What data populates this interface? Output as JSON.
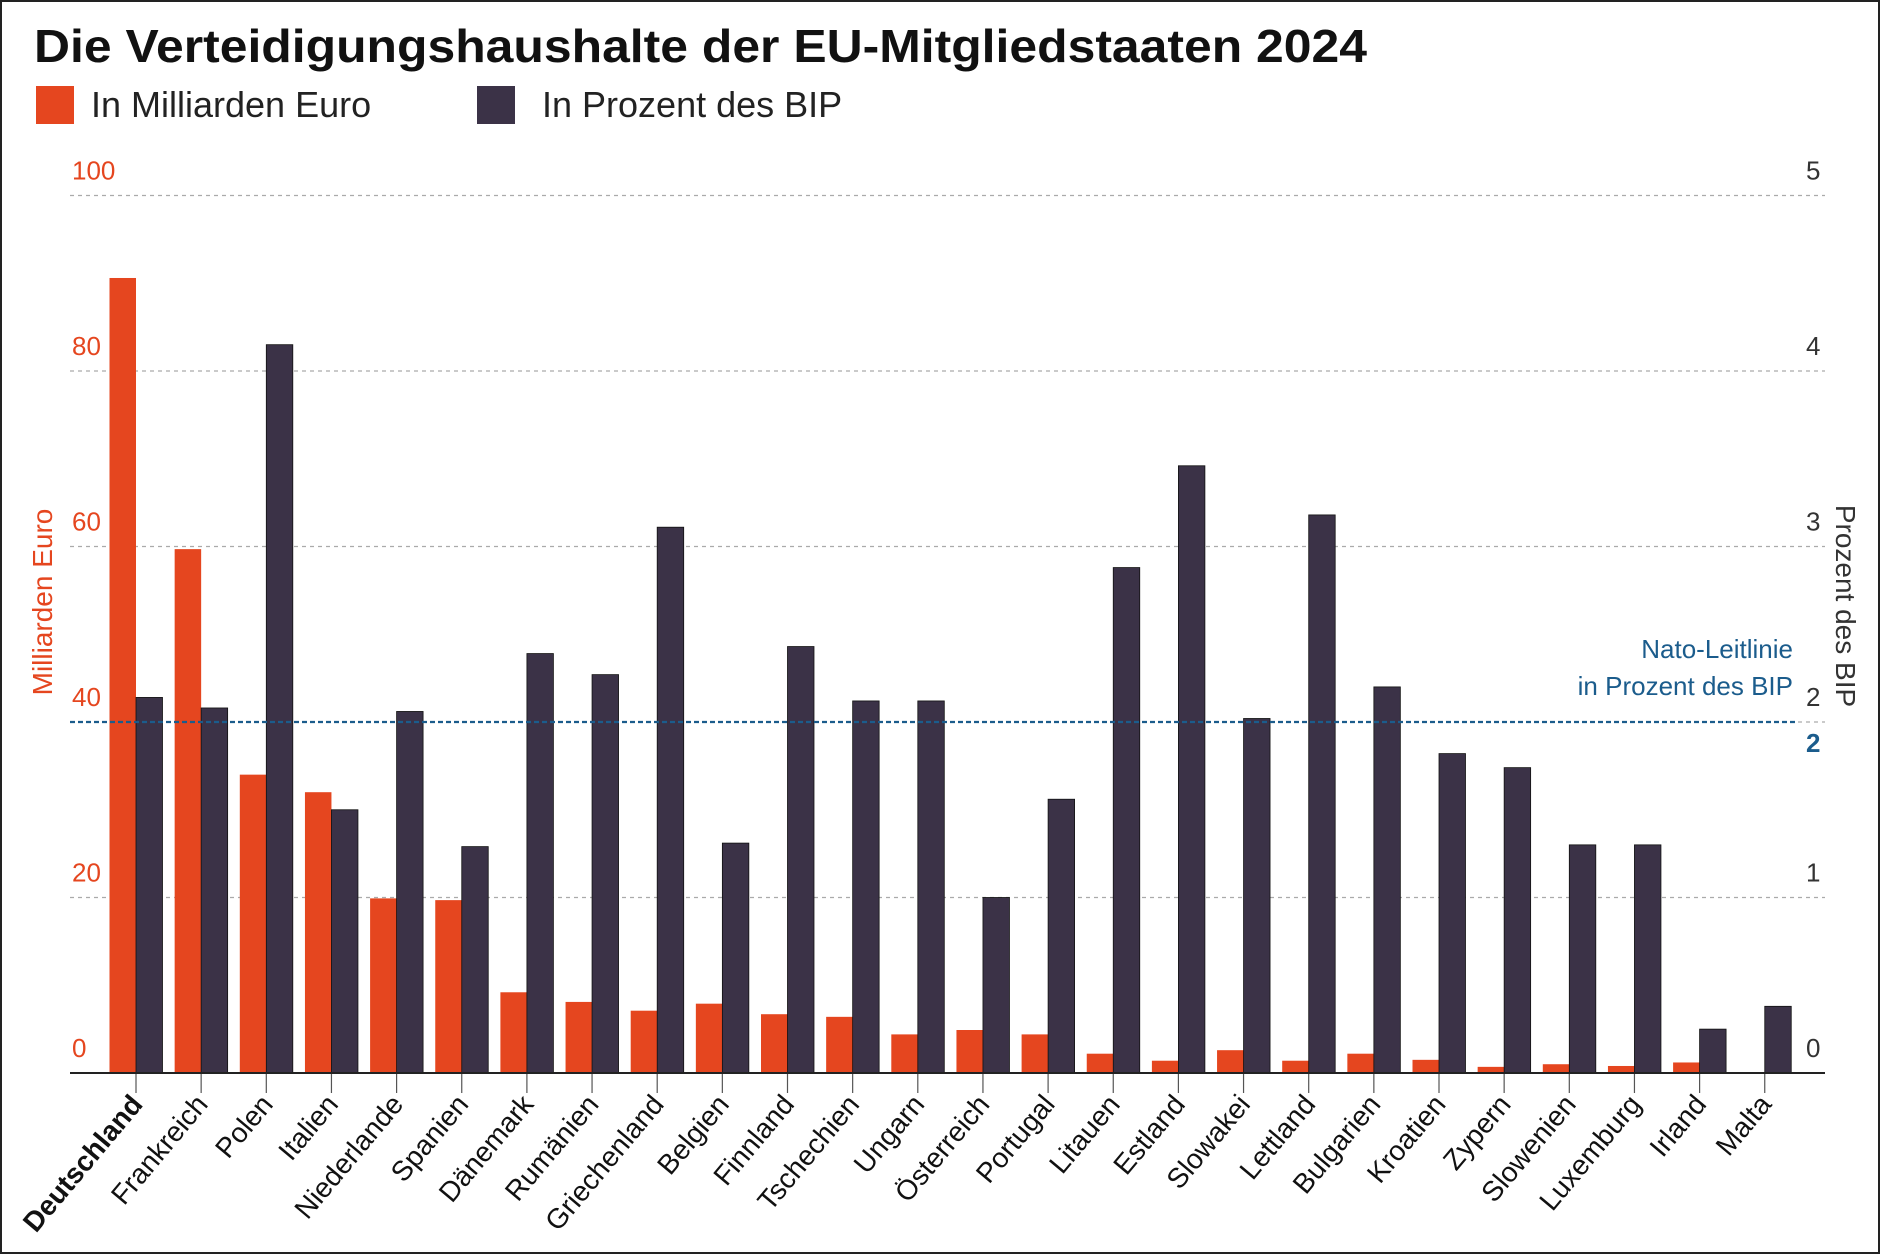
{
  "chart_data": {
    "type": "bar",
    "title": "Die Verteidigungshaushalte der EU-Mitgliedstaaten 2024",
    "legend": [
      {
        "name": "In Milliarden Euro",
        "color": "#e5461f"
      },
      {
        "name": "In Prozent des BIP",
        "color": "#3b3247"
      }
    ],
    "legend_placement": "top-left",
    "ylabel_left": "Milliarden Euro",
    "ylabel_right": "Prozent des BIP",
    "ylim_left": [
      0,
      100
    ],
    "ylim_right": [
      0,
      5
    ],
    "yticks_left": [
      "0",
      "20",
      "40",
      "60",
      "80",
      "100"
    ],
    "yticks_right": [
      "0",
      "1",
      "2",
      "3",
      "4",
      "5"
    ],
    "grid": true,
    "categories": [
      "Deutschland",
      "Frankreich",
      "Polen",
      "Italien",
      "Niederlande",
      "Spanien",
      "Dänemark",
      "Rumänien",
      "Griechenland",
      "Belgien",
      "Finnland",
      "Tschechien",
      "Ungarn",
      "Österreich",
      "Portugal",
      "Litauen",
      "Estland",
      "Slowakei",
      "Lettland",
      "Bulgarien",
      "Kroatien",
      "Zypern",
      "Slowenien",
      "Luxemburg",
      "Irland",
      "Malta"
    ],
    "highlight_category": "Deutschland",
    "series": [
      {
        "name": "In Milliarden Euro",
        "axis": "left",
        "values": [
          90.6,
          59.7,
          34.0,
          32.0,
          19.9,
          19.7,
          9.2,
          8.1,
          7.1,
          7.9,
          6.7,
          6.4,
          4.4,
          4.9,
          4.4,
          2.2,
          1.4,
          2.6,
          1.4,
          2.2,
          1.5,
          0.7,
          1.0,
          0.8,
          1.2,
          0.1
        ]
      },
      {
        "name": "In Prozent des BIP",
        "axis": "right",
        "values": [
          2.14,
          2.08,
          4.15,
          1.5,
          2.06,
          1.29,
          2.39,
          2.27,
          3.11,
          1.31,
          2.43,
          2.12,
          2.12,
          1.0,
          1.56,
          2.88,
          3.46,
          2.02,
          3.18,
          2.2,
          1.82,
          1.74,
          1.3,
          1.3,
          0.25,
          0.38
        ]
      }
    ],
    "reference_line": {
      "value": 2,
      "axis": "right",
      "label_lines": [
        "Nato-Leitlinie",
        "in Prozent des BIP"
      ],
      "value_label": "2",
      "color": "#1b5c8c"
    }
  }
}
